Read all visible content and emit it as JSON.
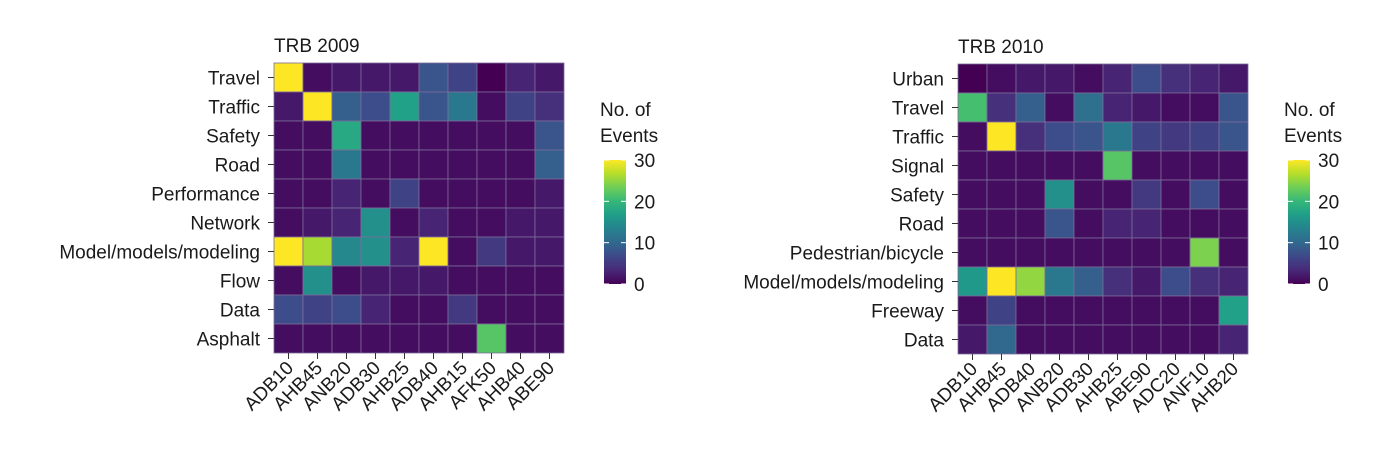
{
  "colorscale": {
    "min": 0,
    "max": 30,
    "stops": [
      "#440154",
      "#482878",
      "#3e4989",
      "#31688e",
      "#26828e",
      "#1f9e89",
      "#35b779",
      "#6ece58",
      "#b5de2b",
      "#fde725"
    ]
  },
  "chart_data": [
    {
      "type": "heatmap",
      "title": "TRB 2009",
      "rows": [
        "Travel",
        "Traffic",
        "Safety",
        "Road",
        "Performance",
        "Network",
        "Model/models/modeling",
        "Flow",
        "Data",
        "Asphalt"
      ],
      "columns": [
        "ADB10",
        "AHB45",
        "ANB20",
        "ADB30",
        "AHB25",
        "ADB40",
        "AHB15",
        "AFK50",
        "AHB40",
        "ABE90"
      ],
      "values": [
        [
          31,
          1,
          2,
          2,
          2,
          8,
          6,
          0,
          3,
          2
        ],
        [
          2,
          32,
          9,
          7,
          17,
          8,
          12,
          1,
          6,
          4
        ],
        [
          1,
          1,
          18,
          1,
          1,
          1,
          1,
          1,
          1,
          8
        ],
        [
          1,
          1,
          12,
          1,
          1,
          1,
          1,
          1,
          1,
          9
        ],
        [
          1,
          1,
          3,
          1,
          6,
          1,
          1,
          1,
          1,
          2
        ],
        [
          1,
          2,
          3,
          15,
          1,
          3,
          1,
          1,
          2,
          2
        ],
        [
          31,
          26,
          14,
          15,
          3,
          31,
          1,
          5,
          2,
          2
        ],
        [
          1,
          15,
          1,
          2,
          2,
          2,
          1,
          1,
          1,
          1
        ],
        [
          7,
          6,
          7,
          3,
          1,
          1,
          5,
          1,
          1,
          1
        ],
        [
          1,
          1,
          1,
          1,
          1,
          1,
          1,
          22,
          1,
          1
        ]
      ],
      "colorbar": {
        "title": [
          "No. of",
          "Events"
        ],
        "ticks": [
          30,
          20,
          10,
          0
        ],
        "range": [
          0,
          30
        ]
      }
    },
    {
      "type": "heatmap",
      "title": "TRB 2010",
      "rows": [
        "Urban",
        "Travel",
        "Traffic",
        "Signal",
        "Safety",
        "Road",
        "Pedestrian/bicycle",
        "Model/models/modeling",
        "Freeway",
        "Data"
      ],
      "columns": [
        "ADB10",
        "AHB45",
        "ADB40",
        "ANB20",
        "ADB30",
        "AHB25",
        "ABE90",
        "ADC20",
        "ANF10",
        "AHB20"
      ],
      "values": [
        [
          0,
          1,
          2,
          2,
          1,
          3,
          7,
          4,
          3,
          2
        ],
        [
          21,
          4,
          9,
          1,
          11,
          3,
          2,
          1,
          1,
          8
        ],
        [
          1,
          32,
          4,
          7,
          8,
          12,
          6,
          5,
          6,
          8
        ],
        [
          1,
          1,
          1,
          1,
          1,
          22,
          1,
          1,
          1,
          1
        ],
        [
          1,
          1,
          1,
          15,
          1,
          1,
          5,
          1,
          7,
          1
        ],
        [
          1,
          1,
          1,
          8,
          1,
          3,
          3,
          1,
          1,
          1
        ],
        [
          1,
          1,
          1,
          1,
          1,
          1,
          1,
          1,
          24,
          1
        ],
        [
          16,
          30,
          25,
          12,
          9,
          4,
          2,
          7,
          4,
          3
        ],
        [
          1,
          6,
          1,
          1,
          1,
          1,
          1,
          1,
          1,
          17
        ],
        [
          2,
          10,
          1,
          1,
          1,
          1,
          1,
          1,
          1,
          3
        ]
      ],
      "colorbar": {
        "title": [
          "No. of",
          "Events"
        ],
        "ticks": [
          30,
          20,
          10,
          0
        ],
        "range": [
          0,
          30
        ]
      }
    }
  ]
}
